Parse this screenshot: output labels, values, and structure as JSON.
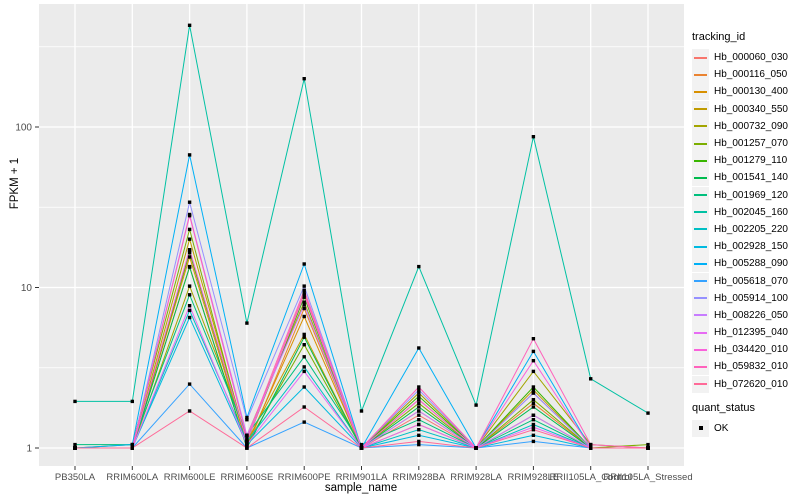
{
  "chart_data": {
    "type": "line",
    "title": "",
    "xlabel": "sample_name",
    "ylabel": "FPKM + 1",
    "yscale": "log10",
    "ylim": [
      0.85,
      520
    ],
    "grid": true,
    "legend_position": "right",
    "legend_title": "tracking_id",
    "legend2_title": "quant_status",
    "quant_status_label": "OK",
    "yticks": [
      "1",
      "10",
      "100"
    ],
    "ytick_values": [
      1,
      10,
      100
    ],
    "minor_ytick_values": [
      3.162,
      31.62,
      316.2
    ],
    "categories": [
      "PB350LA",
      "RRIM600LA",
      "RRIM600LE",
      "RRIM600SE",
      "RRIM600PE",
      "RRIM901LA",
      "RRIM928BA",
      "RRIM928LA",
      "RRIM928LE",
      "RRII105LA_Control",
      "RRII105LA_Stressed"
    ],
    "point_shape": "square",
    "colors": {
      "panel_bg": "#EBEBEB",
      "grid": "#FFFFFF",
      "axis_text": "#4D4D4D",
      "tick_mark": "#333333",
      "point": "#000000",
      "legend_key_bg": "#F2F2F2"
    },
    "series": [
      {
        "name": "Hb_000060_030",
        "color": "#F8766D",
        "values": [
          1,
          1,
          17,
          1.1,
          9.2,
          1,
          1.6,
          1,
          2.2,
          1,
          1
        ]
      },
      {
        "name": "Hb_000116_050",
        "color": "#EA8331",
        "values": [
          1,
          1,
          13.5,
          1,
          7.4,
          1,
          1.7,
          1,
          1.9,
          1,
          1
        ]
      },
      {
        "name": "Hb_000130_400",
        "color": "#D89000",
        "values": [
          1,
          1,
          15.5,
          1.05,
          6.6,
          1,
          1.4,
          1,
          1.6,
          1,
          1
        ]
      },
      {
        "name": "Hb_000340_550",
        "color": "#C09B00",
        "values": [
          1,
          1,
          20,
          1.1,
          5.1,
          1,
          2.0,
          1,
          2.3,
          1,
          1
        ]
      },
      {
        "name": "Hb_000732_090",
        "color": "#A3A500",
        "values": [
          1,
          1,
          10.2,
          1.2,
          8.1,
          1,
          2.2,
          1,
          3.0,
          1.05,
          1
        ]
      },
      {
        "name": "Hb_001257_070",
        "color": "#7CAE00",
        "values": [
          1,
          1.05,
          23,
          1.05,
          4.4,
          1,
          1.9,
          1,
          2.0,
          1,
          1.05
        ]
      },
      {
        "name": "Hb_001279_110",
        "color": "#39B600",
        "values": [
          1,
          1,
          16.5,
          1.1,
          8.7,
          1,
          2.1,
          1,
          2.4,
          1,
          1
        ]
      },
      {
        "name": "Hb_001541_140",
        "color": "#00BB4E",
        "values": [
          1,
          1,
          13.4,
          1,
          4.9,
          1,
          1.8,
          1,
          1.8,
          1,
          1
        ]
      },
      {
        "name": "Hb_001969_120",
        "color": "#00BF7D",
        "values": [
          1.05,
          1.05,
          9.0,
          1.2,
          3.7,
          1.05,
          1.5,
          1,
          1.5,
          1,
          1
        ]
      },
      {
        "name": "Hb_002045_160",
        "color": "#00C1A3",
        "values": [
          1.95,
          1.95,
          430,
          6.0,
          200,
          1.7,
          13.5,
          1.85,
          87,
          2.7,
          1.65
        ]
      },
      {
        "name": "Hb_002205_220",
        "color": "#00BFC4",
        "values": [
          1,
          1,
          7.2,
          1.1,
          3.2,
          1,
          1.3,
          1,
          1.4,
          1,
          1
        ]
      },
      {
        "name": "Hb_002928_150",
        "color": "#00BAE0",
        "values": [
          1,
          1,
          6.5,
          1.05,
          2.4,
          1,
          1.2,
          1,
          1.2,
          1,
          1
        ]
      },
      {
        "name": "Hb_005288_090",
        "color": "#00B0F6",
        "values": [
          1,
          1.05,
          67,
          1.55,
          14,
          1,
          4.2,
          1,
          4.0,
          1,
          1
        ]
      },
      {
        "name": "Hb_005618_070",
        "color": "#35A2FF",
        "values": [
          1,
          1,
          2.5,
          1,
          1.45,
          1,
          1.05,
          1,
          1.1,
          1,
          1
        ]
      },
      {
        "name": "Hb_005914_100",
        "color": "#9590FF",
        "values": [
          1,
          1,
          34,
          1.5,
          10.2,
          1,
          2.3,
          1,
          2.2,
          1,
          1
        ]
      },
      {
        "name": "Hb_008226_050",
        "color": "#C77CFF",
        "values": [
          1,
          1,
          28.5,
          1.2,
          7.8,
          1,
          1.7,
          1,
          1.6,
          1,
          1
        ]
      },
      {
        "name": "Hb_012395_040",
        "color": "#E76BF3",
        "values": [
          1,
          1,
          7.7,
          1.05,
          3.0,
          1,
          1.4,
          1,
          1.35,
          1,
          1
        ]
      },
      {
        "name": "Hb_034420_010",
        "color": "#FA62DB",
        "values": [
          1,
          1,
          17.2,
          1.1,
          9.0,
          1,
          2.0,
          1,
          3.5,
          1,
          1
        ]
      },
      {
        "name": "Hb_059832_010",
        "color": "#FF62BC",
        "values": [
          1,
          1,
          28,
          1.15,
          9.6,
          1,
          2.4,
          1,
          4.8,
          1.05,
          1
        ]
      },
      {
        "name": "Hb_072620_010",
        "color": "#FF6A98",
        "values": [
          1,
          1,
          1.7,
          1,
          1.8,
          1,
          1.1,
          1,
          1.3,
          1,
          1
        ]
      }
    ]
  }
}
